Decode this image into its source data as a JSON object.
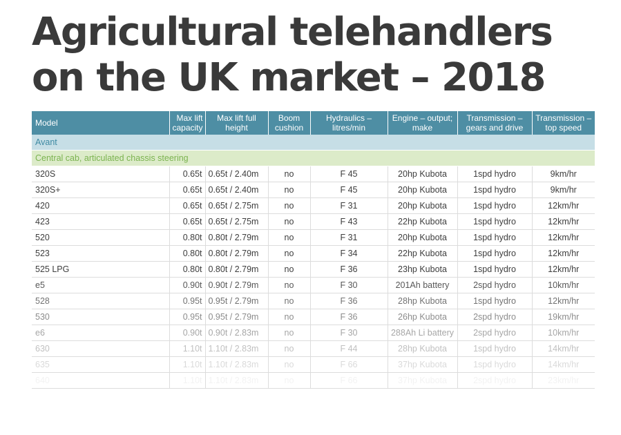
{
  "title": {
    "line1": "Agricultural telehandlers",
    "line2": "on the UK market – 2018"
  },
  "table": {
    "headers": [
      "Model",
      "Max lift capacity",
      "Max lift full height",
      "Boom cushion",
      "Hydraulics – litres/min",
      "Engine – output; make",
      "Transmission – gears and drive",
      "Transmission – top speed"
    ],
    "brand": "Avant",
    "section": "Central cab, articulated chassis steering",
    "rows": [
      [
        "320S",
        "0.65t",
        "0.65t / 2.40m",
        "no",
        "F 45",
        "20hp Kubota",
        "1spd hydro",
        "9km/hr"
      ],
      [
        "320S+",
        "0.65t",
        "0.65t / 2.40m",
        "no",
        "F 45",
        "20hp Kubota",
        "1spd hydro",
        "9km/hr"
      ],
      [
        "420",
        "0.65t",
        "0.65t / 2.75m",
        "no",
        "F 31",
        "20hp Kubota",
        "1spd hydro",
        "12km/hr"
      ],
      [
        "423",
        "0.65t",
        "0.65t / 2.75m",
        "no",
        "F 43",
        "22hp Kubota",
        "1spd hydro",
        "12km/hr"
      ],
      [
        "520",
        "0.80t",
        "0.80t / 2.79m",
        "no",
        "F 31",
        "20hp Kubota",
        "1spd hydro",
        "12km/hr"
      ],
      [
        "523",
        "0.80t",
        "0.80t / 2.79m",
        "no",
        "F 34",
        "22hp Kubota",
        "1spd hydro",
        "12km/hr"
      ],
      [
        "525 LPG",
        "0.80t",
        "0.80t / 2.79m",
        "no",
        "F 36",
        "23hp Kubota",
        "1spd hydro",
        "12km/hr"
      ],
      [
        "e5",
        "0.90t",
        "0.90t / 2.79m",
        "no",
        "F 30",
        "201Ah battery",
        "2spd hydro",
        "10km/hr"
      ],
      [
        "528",
        "0.95t",
        "0.95t / 2.79m",
        "no",
        "F 36",
        "28hp Kubota",
        "1spd hydro",
        "12km/hr"
      ],
      [
        "530",
        "0.95t",
        "0.95t / 2.79m",
        "no",
        "F 36",
        "26hp Kubota",
        "2spd hydro",
        "19km/hr"
      ],
      [
        "e6",
        "0.90t",
        "0.90t / 2.83m",
        "no",
        "F 30",
        "288Ah Li battery",
        "2spd hydro",
        "10km/hr"
      ],
      [
        "630",
        "1.10t",
        "1.10t / 2.83m",
        "no",
        "F 44",
        "28hp Kubota",
        "1spd hydro",
        "14km/hr"
      ],
      [
        "635",
        "1.10t",
        "1.10t / 2.83m",
        "no",
        "F 66",
        "37hp Kubota",
        "1spd hydro",
        "14km/hr"
      ],
      [
        "640",
        "1.10t",
        "1.10t / 2.83m",
        "no",
        "F 66",
        "37hp Kubota",
        "2spd hydro",
        "23km/hr"
      ]
    ]
  }
}
